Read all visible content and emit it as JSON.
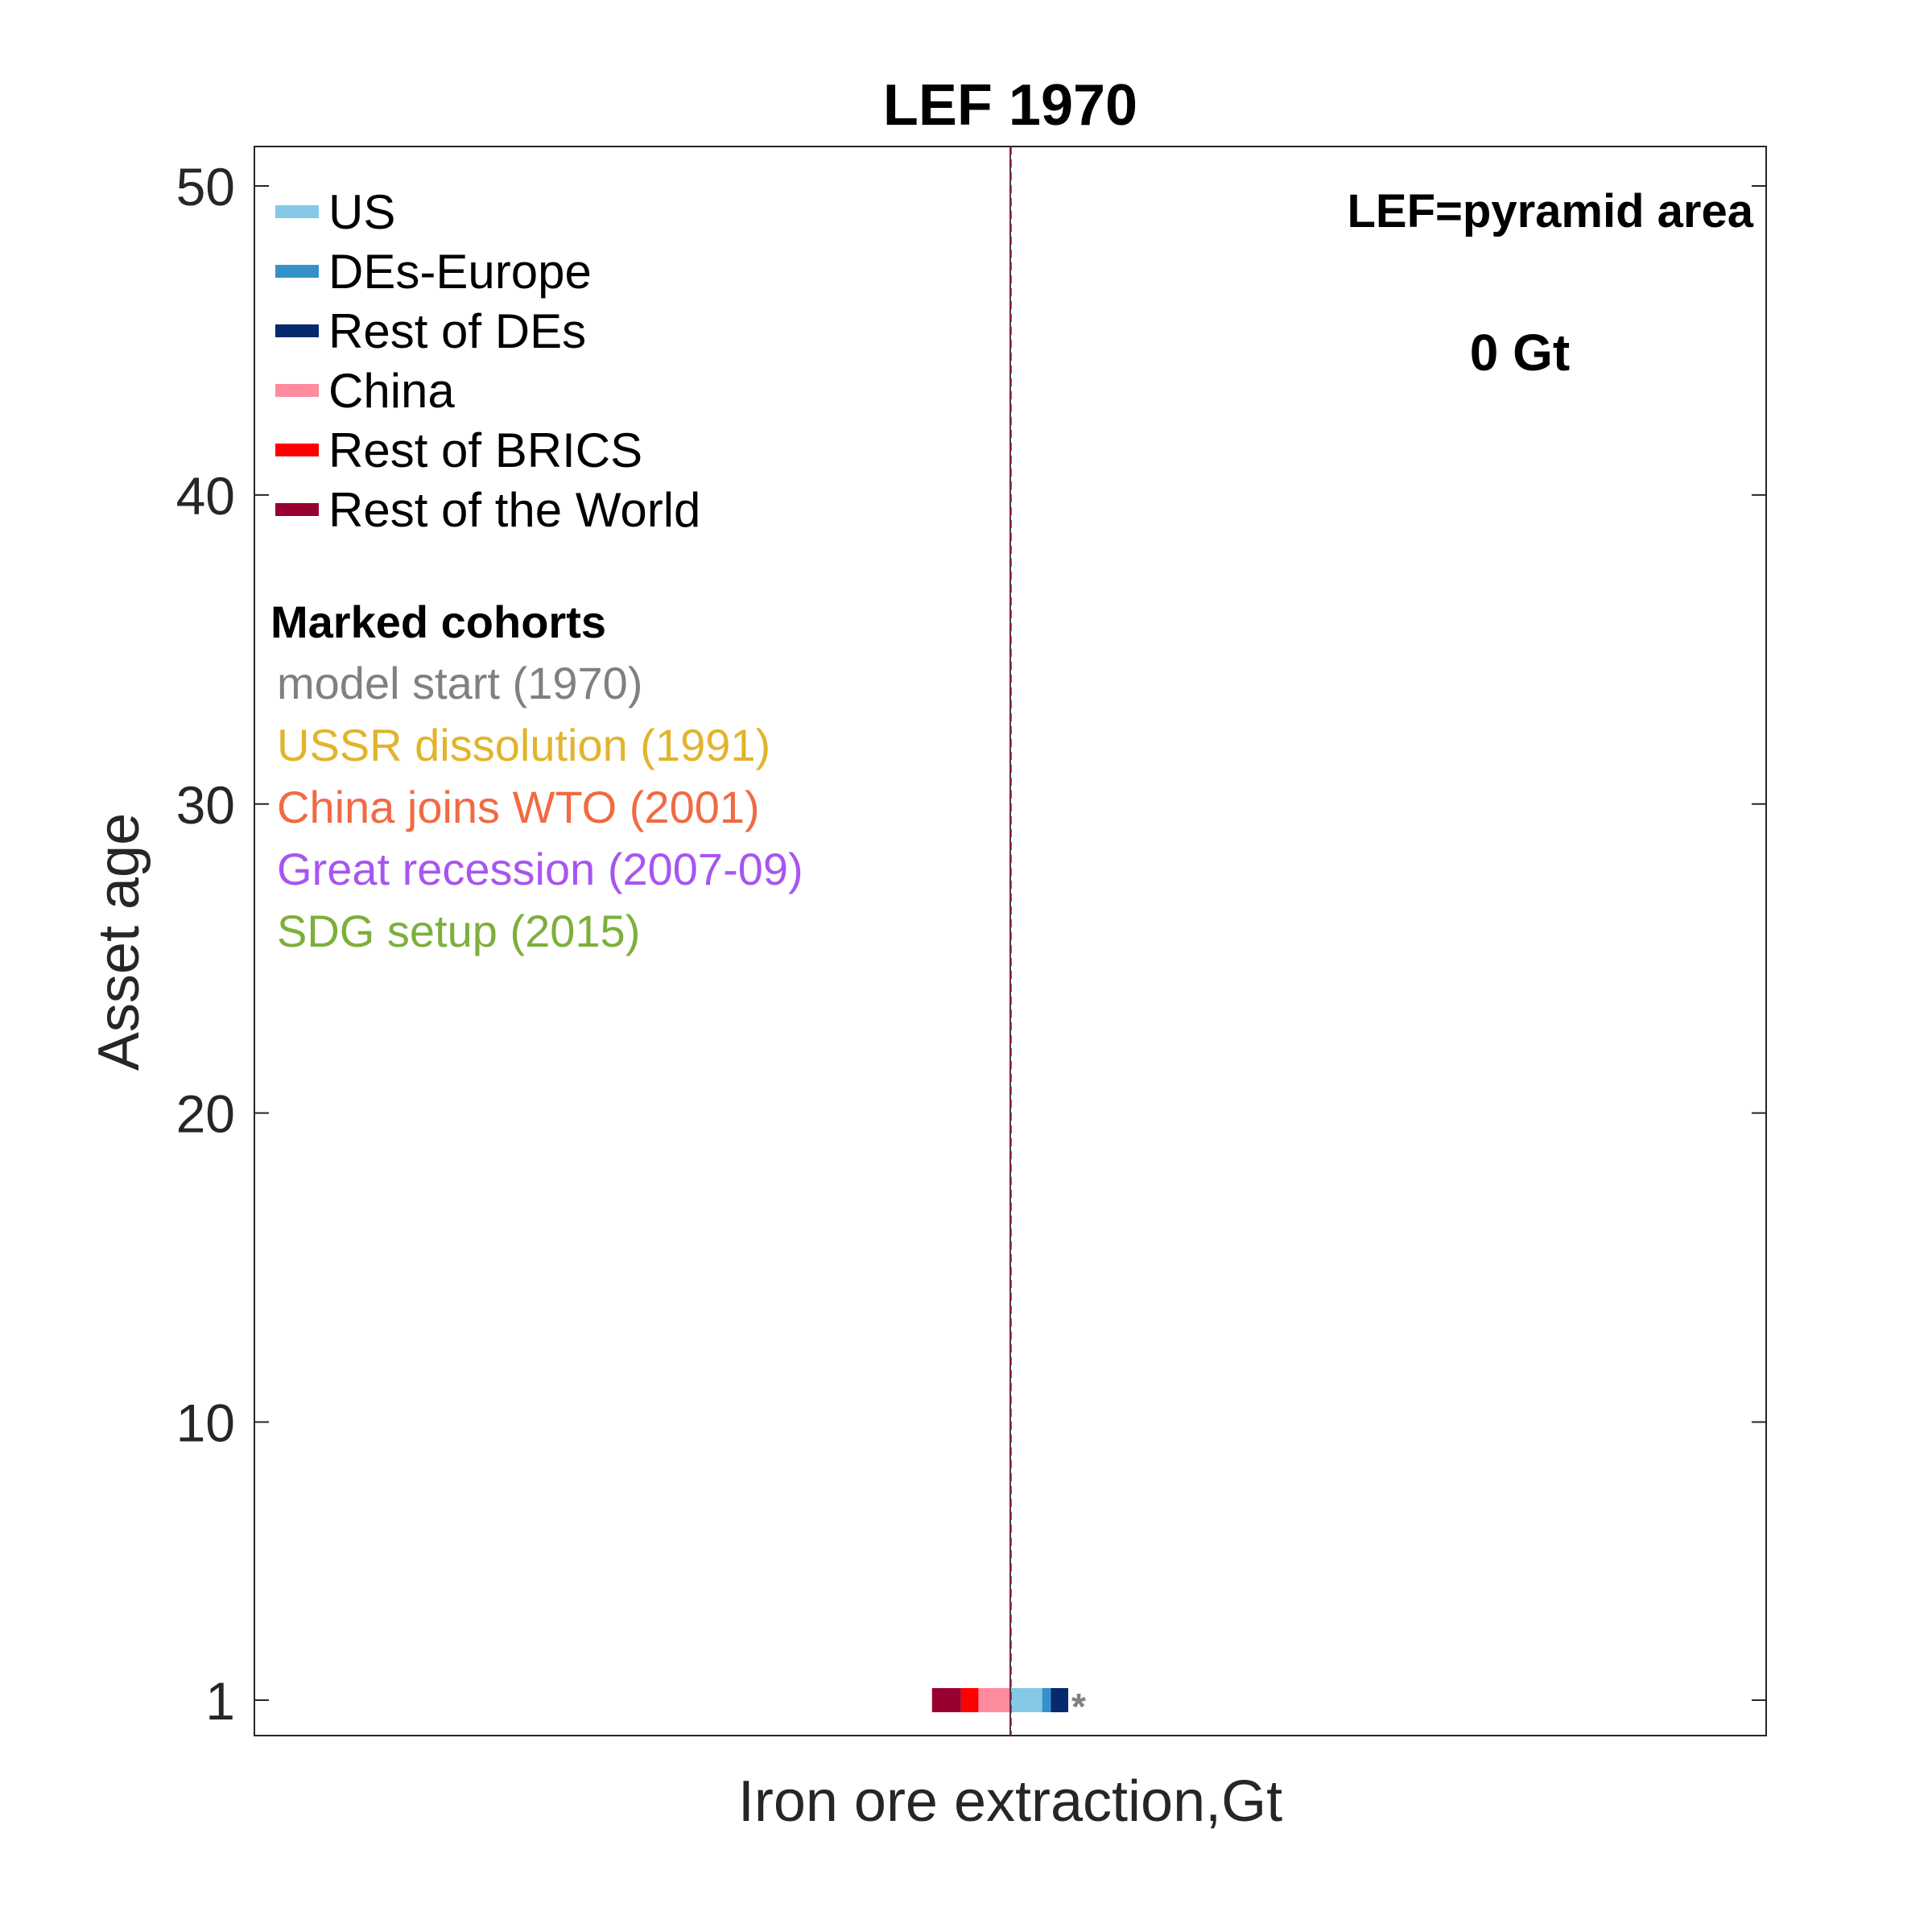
{
  "chart_data": {
    "type": "bar",
    "title": "LEF 1970",
    "xlabel": "Iron ore extraction,Gt",
    "ylabel": "Asset age",
    "ylim": [
      0,
      51
    ],
    "yticks": [
      1,
      10,
      20,
      30,
      40,
      50
    ],
    "grid": false,
    "legend_position": "top-left",
    "series": [
      {
        "name": "US",
        "color": "#85c9e6",
        "side": "right",
        "values": [
          0.0011
        ]
      },
      {
        "name": "DEs-Europe",
        "color": "#3591cb",
        "side": "right",
        "values": [
          0.0003
        ]
      },
      {
        "name": "Rest of DEs",
        "color": "#07296e",
        "side": "right",
        "values": [
          0.0006
        ]
      },
      {
        "name": "China",
        "color": "#fe8b9e",
        "side": "left",
        "values": [
          0.0011
        ]
      },
      {
        "name": "Rest of BRICS",
        "color": "#fe0000",
        "side": "left",
        "values": [
          0.0006
        ]
      },
      {
        "name": "Rest of the World",
        "color": "#980030",
        "side": "left",
        "values": [
          0.001
        ]
      }
    ],
    "ages": [
      1
    ],
    "marker_symbol": "*",
    "marker_color": "#808080",
    "annotation_label": "LEF=pyramid area",
    "annotation_value": "0 Gt",
    "cohorts_title": "Marked cohorts",
    "cohorts": [
      {
        "label": "model start (1970)",
        "color": "#808080"
      },
      {
        "label": "USSR dissolution (1991)",
        "color": "#e1b42c"
      },
      {
        "label": "China joins WTO (2001)",
        "color": "#f16a42"
      },
      {
        "label": "Great recession (2007-09)",
        "color": "#a855f0"
      },
      {
        "label": "SDG setup (2015)",
        "color": "#7daf3b"
      }
    ]
  }
}
